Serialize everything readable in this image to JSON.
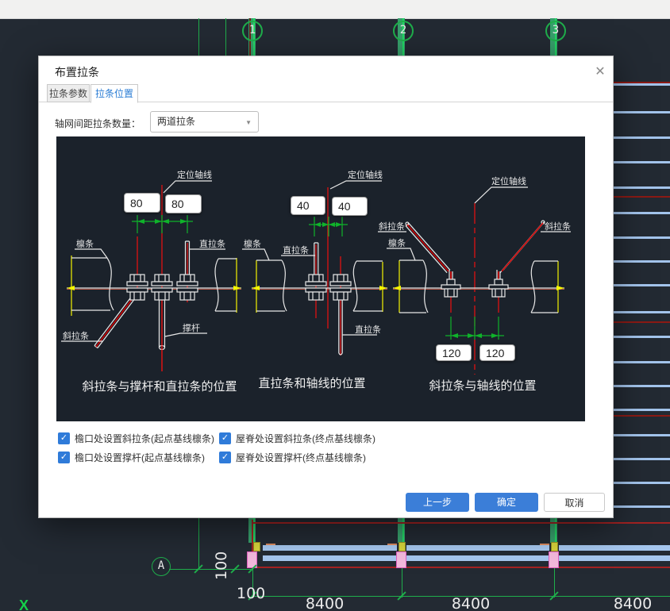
{
  "icons": {
    "close": "✕",
    "check": "✓",
    "combo_arrow": "▼"
  },
  "dialog": {
    "title": "布置拉条",
    "tabs": [
      {
        "label": "拉条参数"
      },
      {
        "label": "拉条位置"
      }
    ],
    "combo": {
      "label": "轴网间距拉条数量：",
      "value": "两道拉条"
    },
    "preview": {
      "d1": {
        "axis": "定位轴线",
        "v1": "80",
        "v2": "80",
        "purlin": "檩条",
        "straight": "直拉条",
        "diagonal": "斜拉条",
        "strut": "撑杆",
        "caption": "斜拉条与撑杆和直拉条的位置"
      },
      "d2": {
        "axis": "定位轴线",
        "v1": "40",
        "v2": "40",
        "purlin": "檩条",
        "straight_top": "直拉条",
        "straight_bottom": "直拉条",
        "caption": "直拉条和轴线的位置"
      },
      "d3": {
        "axis": "定位轴线",
        "v1": "120",
        "v2": "120",
        "diag_left": "斜拉条",
        "purlin": "檩条",
        "diag_right": "斜拉条",
        "caption": "斜拉条与轴线的位置"
      }
    },
    "checkboxes": [
      {
        "label": "檐口处设置斜拉条(起点基线檩条)",
        "checked": true
      },
      {
        "label": "屋脊处设置斜拉条(终点基线檩条)",
        "checked": true
      },
      {
        "label": "檐口处设置撑杆(起点基线檩条)",
        "checked": true
      },
      {
        "label": "屋脊处设置撑杆(终点基线檩条)",
        "checked": true
      }
    ],
    "buttons": {
      "prev": "上一步",
      "ok": "确定",
      "cancel": "取消"
    }
  },
  "background": {
    "axis_top": [
      "1",
      "2",
      "3"
    ],
    "axis_left": "A",
    "dim_vertical": "100",
    "dim_small": "100",
    "spans": [
      "8400",
      "8400",
      "8400"
    ],
    "ucs_x": "X",
    "colors": {
      "accent_blue": "#2f7bd9",
      "cad_green": "#1fae4b",
      "cad_red": "#a32222",
      "beam_blue": "#a5c6ee",
      "column_pink": "#f2b8dc"
    }
  }
}
